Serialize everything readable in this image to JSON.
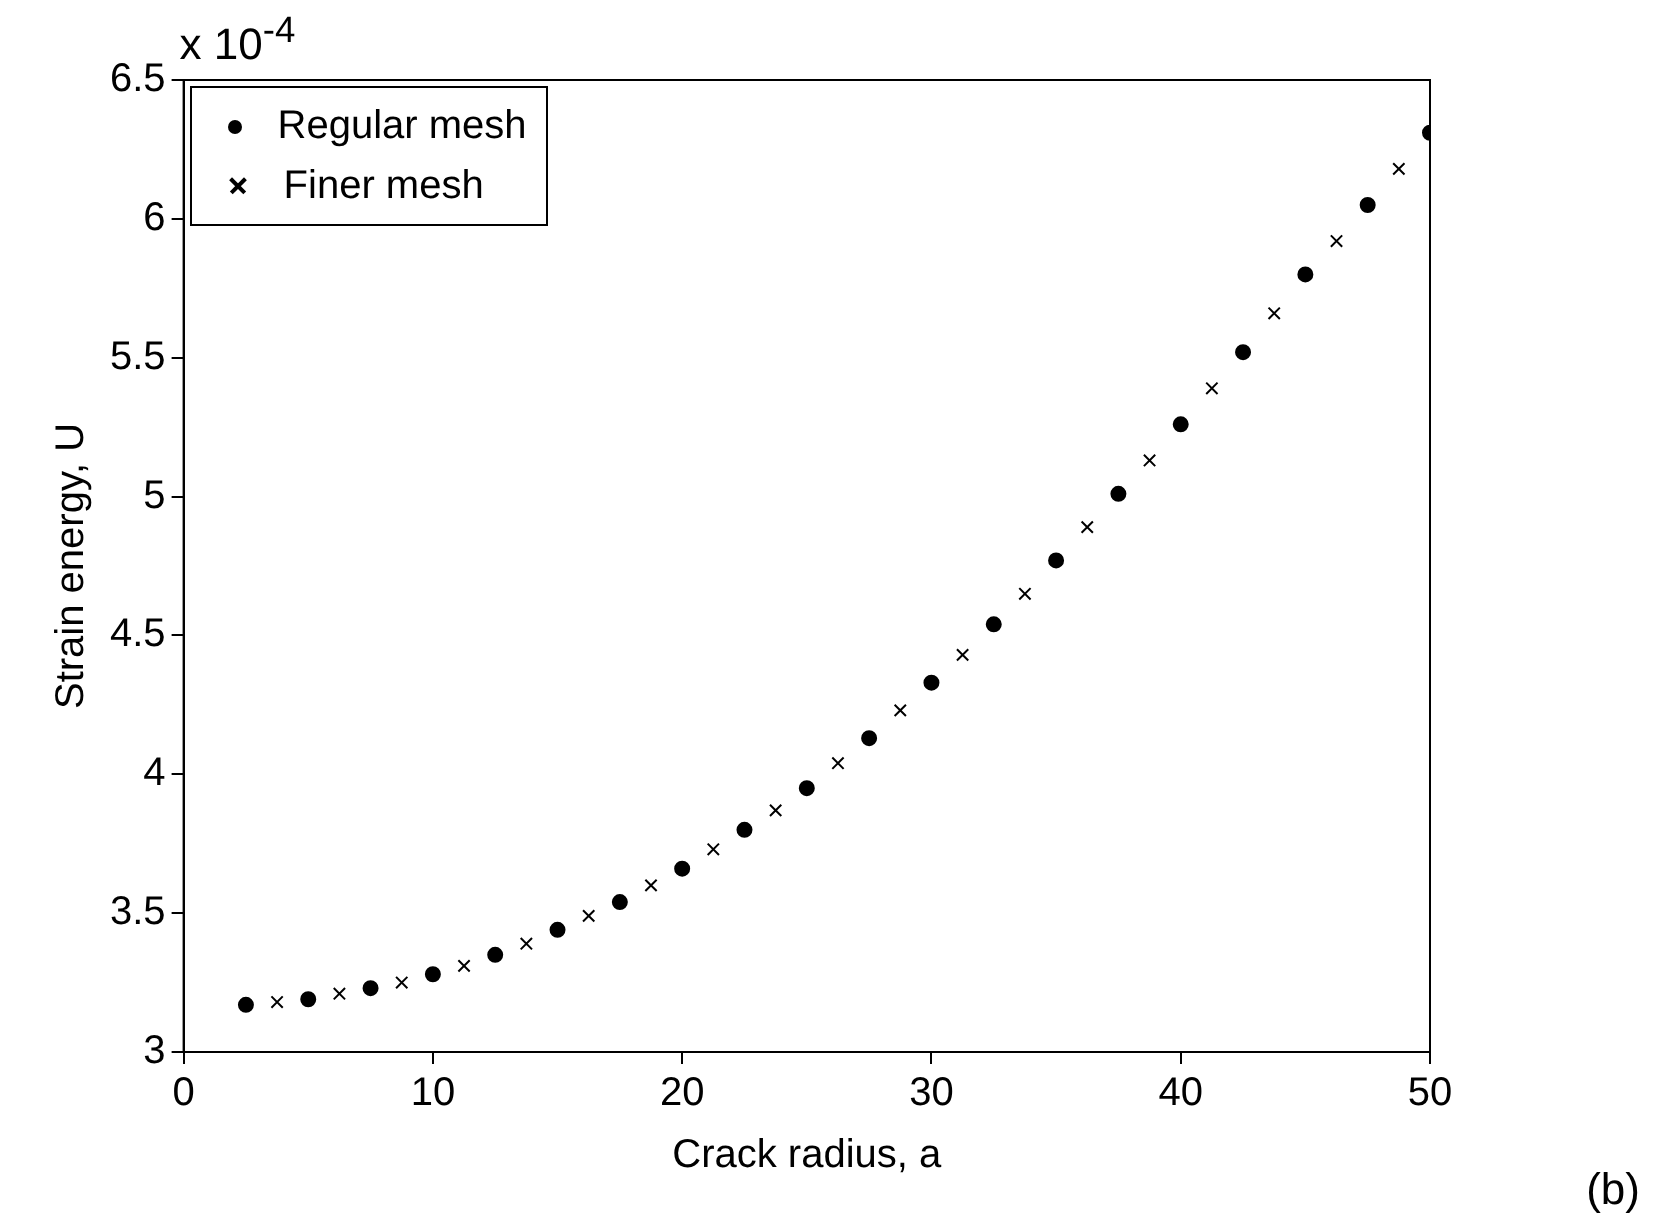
{
  "chart_data": {
    "type": "scatter",
    "xlabel": "Crack radius, a",
    "ylabel": "Strain energy, U",
    "annotations": [
      "x 10$^{-4}$",
      "(b)"
    ],
    "xlim": [
      0,
      50
    ],
    "xticks": [
      0,
      10,
      20,
      30,
      40,
      50
    ],
    "ylim": [
      3,
      6.5
    ],
    "yticks": [
      3,
      3.5,
      4,
      4.5,
      5,
      5.5,
      6,
      6.5
    ],
    "grid": false,
    "legend": "top left",
    "series": [
      {
        "name": "Regular mesh",
        "color": "#000000",
        "marker": "circle",
        "x": [
          2.5,
          5,
          7.5,
          10,
          12.5,
          15,
          17.5,
          20,
          22.5,
          25,
          27.5,
          30,
          32.5,
          35,
          37.5,
          40,
          42.5,
          45,
          47.5,
          50
        ],
        "values": [
          3.17,
          3.19,
          3.23,
          3.28,
          3.35,
          3.44,
          3.54,
          3.66,
          3.8,
          3.95,
          4.13,
          4.33,
          4.54,
          4.77,
          5.01,
          5.26,
          5.52,
          5.8,
          6.05,
          6.31
        ]
      },
      {
        "name": "Finer mesh",
        "color": "#000000",
        "marker": "cross",
        "x": [
          3.75,
          6.25,
          8.75,
          11.25,
          13.75,
          16.25,
          18.75,
          21.25,
          23.75,
          26.25,
          28.75,
          31.25,
          33.75,
          36.25,
          38.75,
          41.25,
          43.75,
          46.25,
          48.75
        ],
        "values": [
          3.18,
          3.21,
          3.25,
          3.31,
          3.39,
          3.49,
          3.6,
          3.73,
          3.87,
          4.04,
          4.23,
          4.43,
          4.65,
          4.89,
          5.13,
          5.39,
          5.66,
          5.92,
          6.18
        ]
      }
    ]
  }
}
